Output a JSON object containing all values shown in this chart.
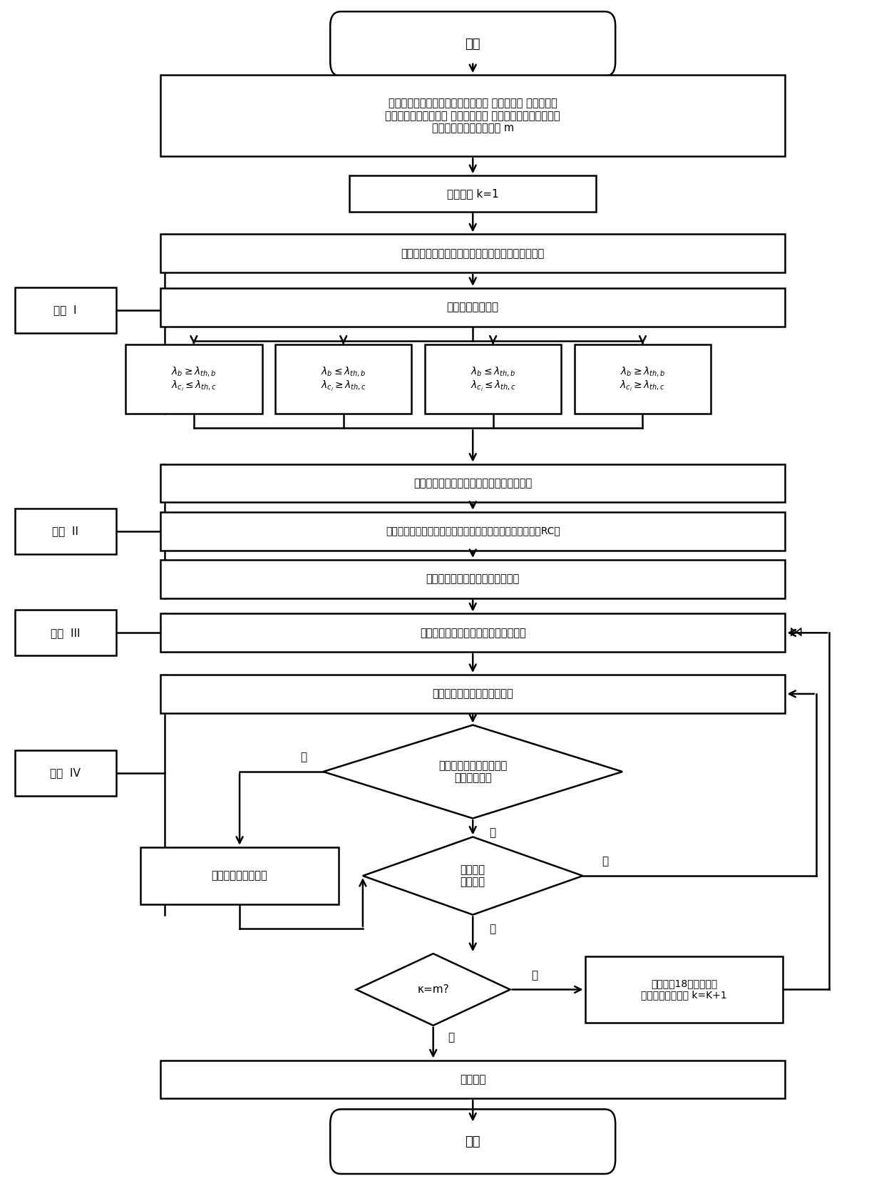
{
  "bg_color": "#ffffff",
  "line_color": "#000000",
  "box_fill": "#ffffff",
  "font_color": "#000000",
  "start_text": "开始",
  "end_text": "结束",
  "init_text": "获取当前电力系统的网络拓扑结构、 维修计划、 负荷预测数\n据、发电机出力计划、 预想事故集、 输入备选开断输电线路和\n允许开断输电线路的数量 m",
  "counter_text": "置计数器 k=1",
  "s1b1_text": "应用连续潮流方法计算预期基态电力系统的负荷裕度",
  "s1b2_text": "执行预想事故分析",
  "cond_texts": [
    "$\\lambda_b \\geq \\lambda_{th,b}$\n$\\lambda_{c_i} \\leq \\lambda_{th,c}$",
    "$\\lambda_b \\leq \\lambda_{th,b}$\n$\\lambda_{c_i} \\geq \\lambda_{th,c}$",
    "$\\lambda_b \\leq \\lambda_{th,b}$\n$\\lambda_{c_i} \\leq \\lambda_{th,c}$",
    "$\\lambda_b \\geq \\lambda_{th,b}$\n$\\lambda_{c_i} \\geq \\lambda_{th,c}$"
  ],
  "s2b1_text": "应用聚类方法对所有预想事故进行聚类分组",
  "s2b2_text": "选取每组中负荷裕度最低的预想事故作为该组的代表事故（RC）",
  "s2b3_text": "执行预想事故代表的开断线路识别",
  "s3b_text": "执行预期基态电力系统的开断线路识别",
  "s4b1_text": "提取一个解执行预想事故分析",
  "d1_text": "所有预想事故的负荷裕度\n都满足要求？",
  "remove_text": "从解集合中剔除该解",
  "d2_text": "所有解都\n校验了？",
  "d3_text": "κ=m?",
  "gen_text": "根据式（18）生成备选\n开断线路集合，置 k=K+1",
  "output_text": "输出结果",
  "stage_labels": [
    "阶段  I",
    "阶段  II",
    "阶段  III",
    "阶段  IV"
  ],
  "yes_text": "是",
  "no_text": "否"
}
